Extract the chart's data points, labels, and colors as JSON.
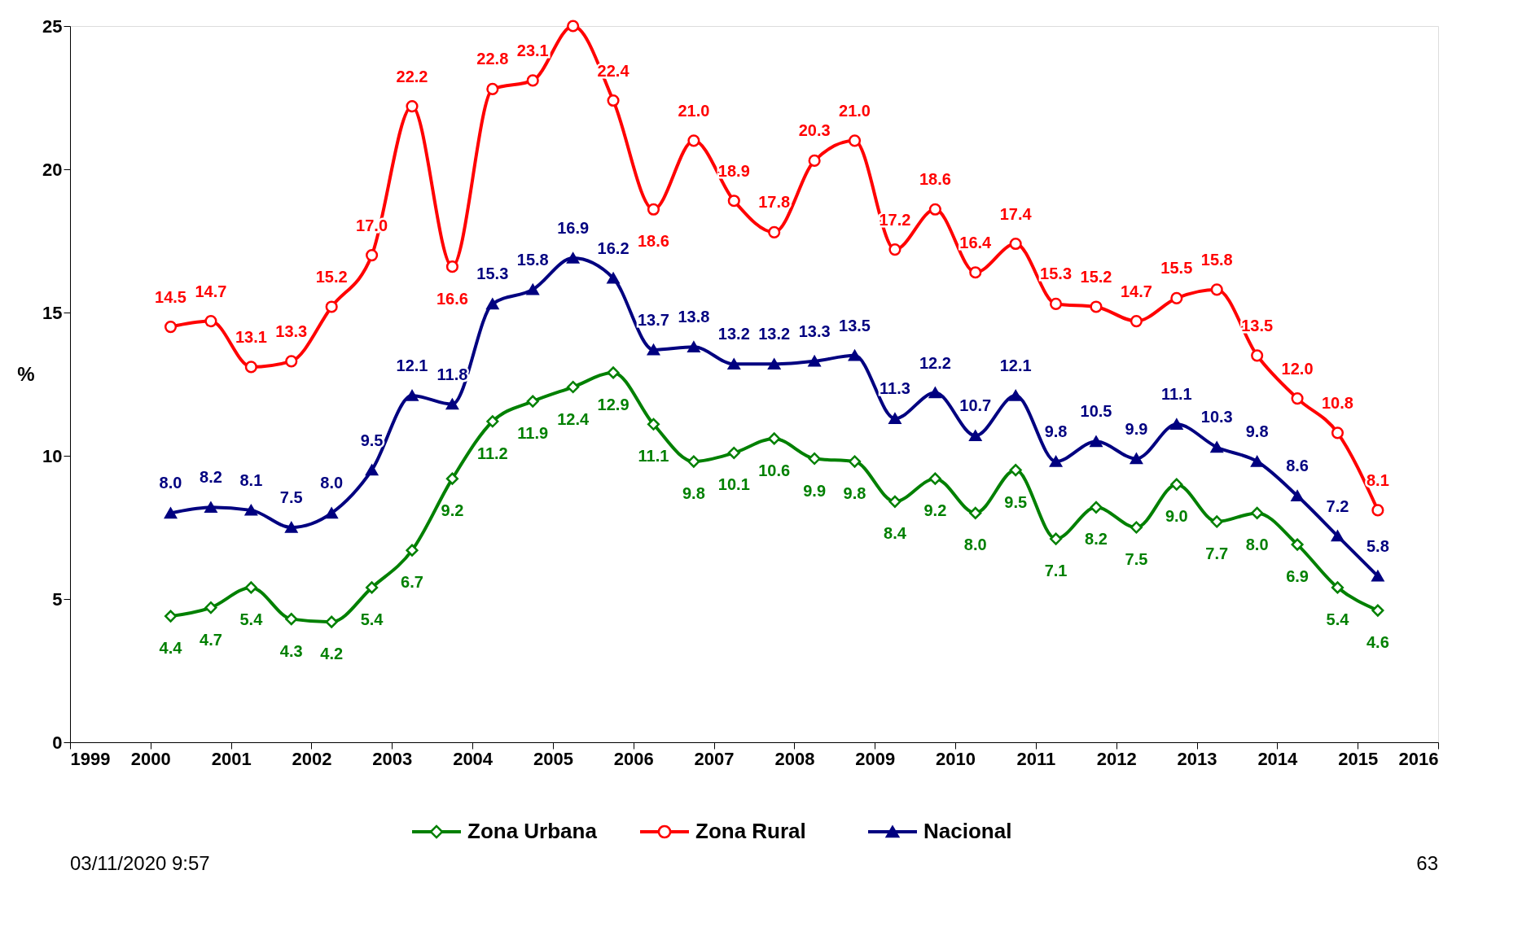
{
  "chart_data": {
    "type": "line",
    "ylabel": "%",
    "x": [
      2000.25,
      2000.75,
      2001.25,
      2001.75,
      2002.25,
      2002.75,
      2003.25,
      2003.75,
      2004.25,
      2004.75,
      2005.25,
      2005.75,
      2006.25,
      2006.75,
      2007.25,
      2007.75,
      2008.25,
      2008.75,
      2009.25,
      2009.75,
      2010.25,
      2010.75,
      2011.25,
      2011.75,
      2012.25,
      2012.75,
      2013.25,
      2013.75,
      2014.25,
      2014.75,
      2015.25
    ],
    "series": [
      {
        "name": "Zona Urbana",
        "color": "#008000",
        "marker": "diamond",
        "values": [
          4.4,
          4.7,
          5.4,
          4.3,
          4.2,
          5.4,
          6.7,
          9.2,
          11.2,
          11.9,
          12.4,
          12.9,
          11.1,
          9.8,
          10.1,
          10.6,
          9.9,
          9.8,
          8.4,
          9.2,
          8.0,
          9.5,
          7.1,
          8.2,
          7.5,
          9.0,
          7.7,
          8.0,
          6.9,
          5.4,
          4.6
        ],
        "value_labels": [
          "4.4",
          "4.7",
          "5.4",
          "4.3",
          "4.2",
          "5.4",
          "6.7",
          "9.2",
          "11.2",
          "11.9",
          "12.4",
          "12.9",
          "11.1",
          "9.8",
          "10.1",
          "10.6",
          "9.9",
          "9.8",
          "8.4",
          "9.2",
          "8.0",
          "9.5",
          "7.1",
          "8.2",
          "7.5",
          "9.0",
          "7.7",
          "8.0",
          "6.9",
          "5.4",
          "4.6"
        ]
      },
      {
        "name": "Zona Rural",
        "color": "#ff0000",
        "marker": "circle",
        "values": [
          14.5,
          14.7,
          13.1,
          13.3,
          15.2,
          17.0,
          22.2,
          16.6,
          22.8,
          23.1,
          25.0,
          22.4,
          18.6,
          21.0,
          18.9,
          17.8,
          20.3,
          21.0,
          17.2,
          18.6,
          16.4,
          17.4,
          15.3,
          15.2,
          14.7,
          15.5,
          15.8,
          13.5,
          12.0,
          10.8,
          8.1
        ],
        "value_labels": [
          "14.5",
          "14.7",
          "13.1",
          "13.3",
          "15.2",
          "17.0",
          "22.2",
          "16.6",
          "22.8",
          "23.1",
          null,
          "22.4",
          "18.6",
          "21.0",
          "18.9",
          "17.8",
          "20.3",
          "21.0",
          "17.2",
          "18.6",
          "16.4",
          "17.4",
          "15.3",
          "15.2",
          "14.7",
          "15.5",
          "15.8",
          "13.5",
          "12.0",
          "10.8",
          "8.1"
        ]
      },
      {
        "name": "Nacional",
        "color": "#000080",
        "marker": "triangle",
        "values": [
          8.0,
          8.2,
          8.1,
          7.5,
          8.0,
          9.5,
          12.1,
          11.8,
          15.3,
          15.8,
          16.9,
          16.2,
          13.7,
          13.8,
          13.2,
          13.2,
          13.3,
          13.5,
          11.3,
          12.2,
          10.7,
          12.1,
          9.8,
          10.5,
          9.9,
          11.1,
          10.3,
          9.8,
          8.6,
          7.2,
          5.8
        ],
        "value_labels": [
          "8.0",
          "8.2",
          "8.1",
          "7.5",
          "8.0",
          "9.5",
          "12.1",
          "11.8",
          "15.3",
          "15.8",
          "16.9",
          "16.2",
          "13.7",
          "13.8",
          "13.2",
          "13.2",
          "13.3",
          "13.5",
          "11.3",
          "12.2",
          "10.7",
          "12.1",
          "9.8",
          "10.5",
          "9.9",
          "11.1",
          "10.3",
          "9.8",
          "8.6",
          "7.2",
          "5.8"
        ]
      }
    ],
    "xlim": [
      1999,
      2016
    ],
    "xticks": [
      1999,
      2000,
      2001,
      2002,
      2003,
      2004,
      2005,
      2006,
      2007,
      2008,
      2009,
      2010,
      2011,
      2012,
      2013,
      2014,
      2015,
      2016
    ],
    "ylim": [
      0,
      25
    ],
    "yticks": [
      0,
      5,
      10,
      15,
      20,
      25
    ],
    "grid": false,
    "legend": "bottom",
    "line_style": "solid",
    "annotations": [
      "03/11/2020 9:57",
      "63"
    ]
  }
}
